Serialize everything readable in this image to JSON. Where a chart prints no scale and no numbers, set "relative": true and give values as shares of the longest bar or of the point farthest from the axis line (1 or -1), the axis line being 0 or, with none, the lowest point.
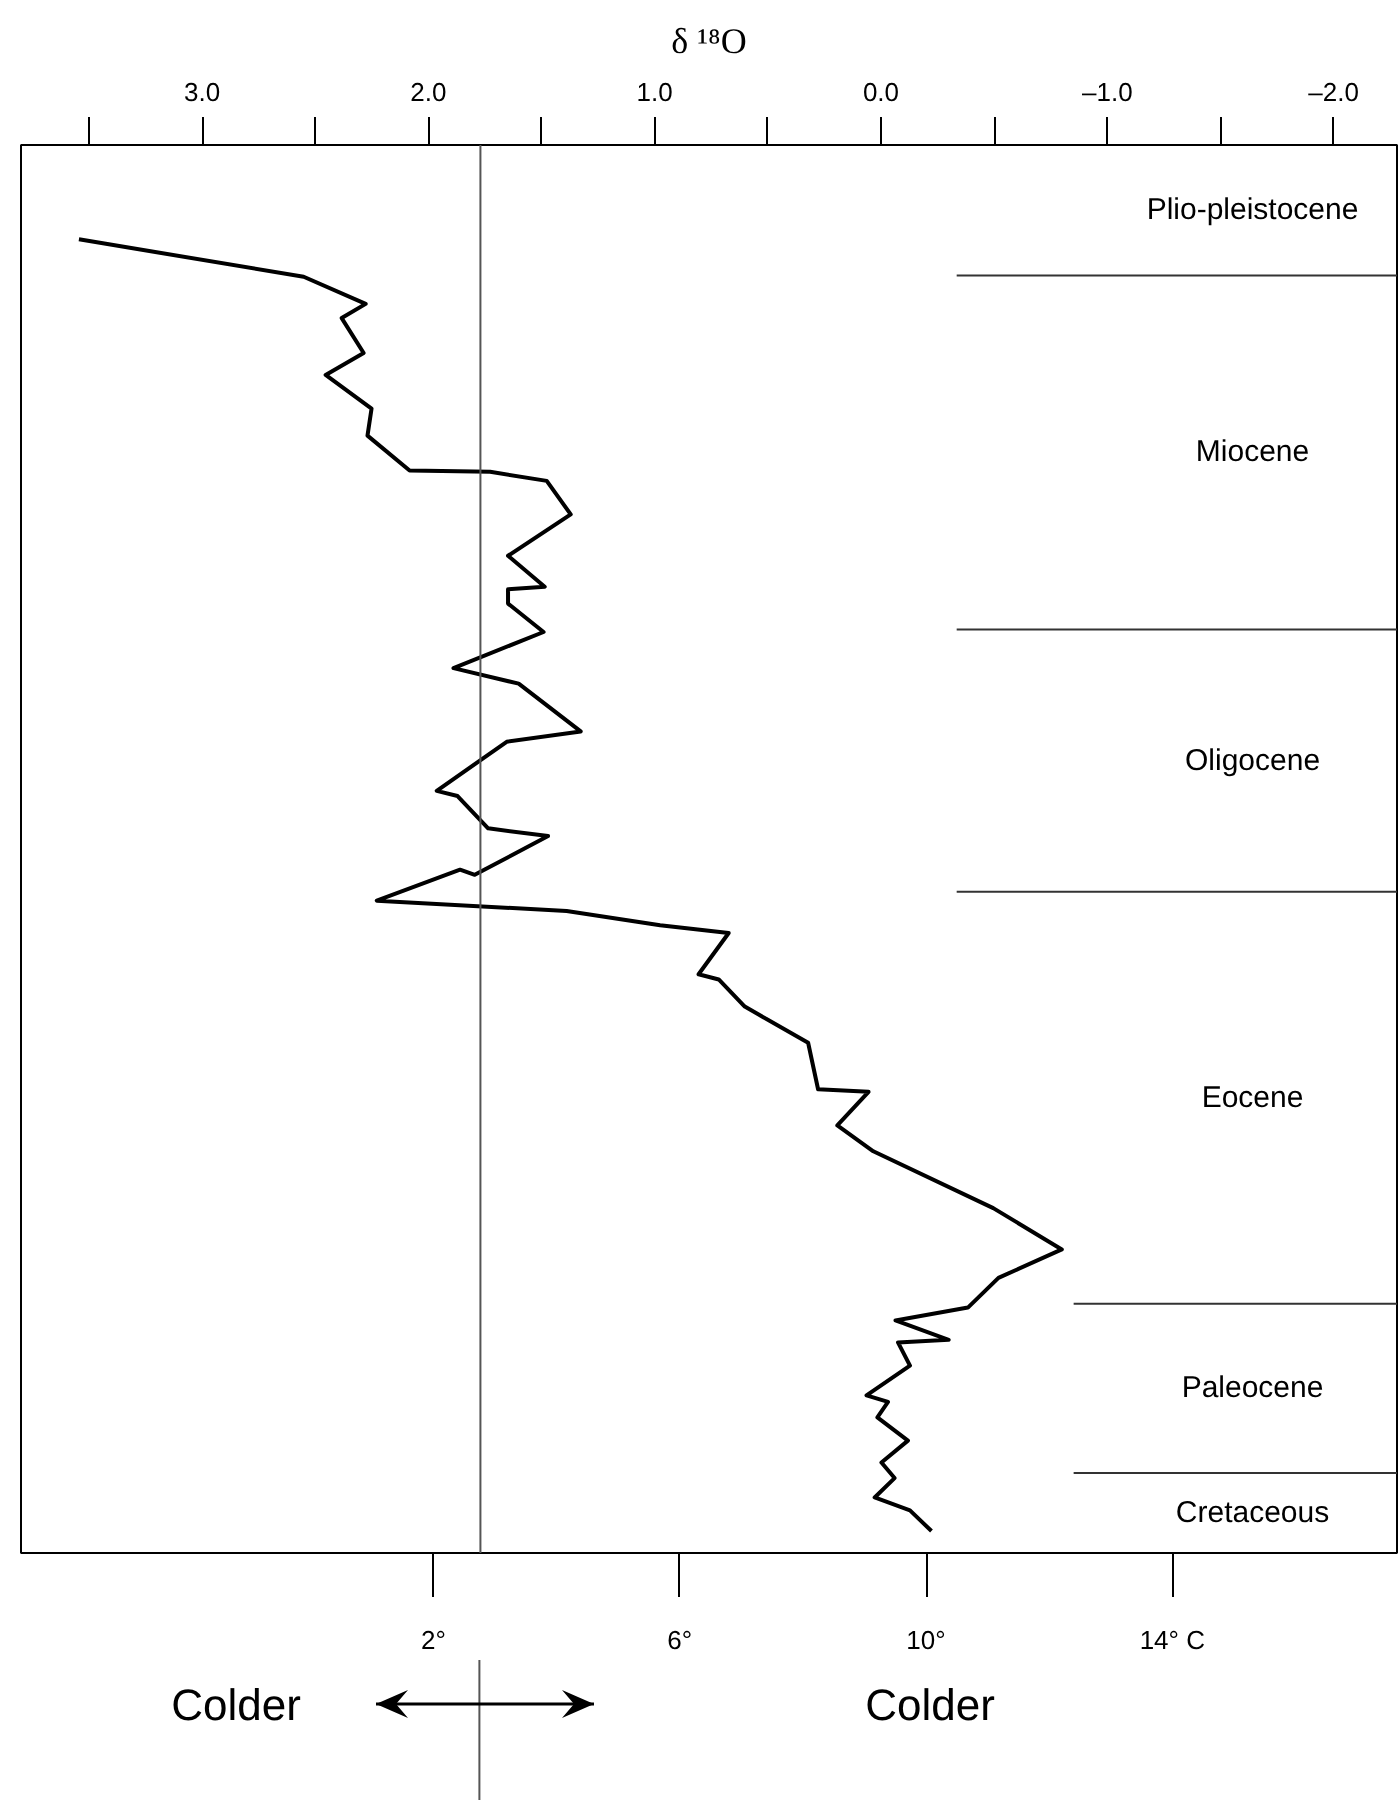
{
  "chart_data": {
    "type": "line",
    "relative": true,
    "xlabel": "δ ¹⁸O",
    "xlim": [
      3.8,
      -2.28
    ],
    "xticks": [
      {
        "value": 3.5,
        "label": null
      },
      {
        "value": 3,
        "label": "3.0"
      },
      {
        "value": 2.5,
        "label": null
      },
      {
        "value": 2,
        "label": "2.0"
      },
      {
        "value": 1.5,
        "label": null
      },
      {
        "value": 1,
        "label": "1.0"
      },
      {
        "value": 0.5,
        "label": null
      },
      {
        "value": 0,
        "label": "0.0"
      },
      {
        "value": -0.5,
        "label": null
      },
      {
        "value": -1,
        "label": "–1.0"
      },
      {
        "value": -1.5,
        "label": null
      },
      {
        "value": -2,
        "label": "–2.0"
      }
    ],
    "x2lim": [
      -4.7,
      17.65
    ],
    "x2ticks": [
      {
        "value": 2,
        "label": "2°"
      },
      {
        "value": 6,
        "label": "6°"
      },
      {
        "value": 10,
        "label": "10°"
      },
      {
        "value": 14,
        "label": "14° C"
      }
    ],
    "grid": false,
    "ylim": [
      -0.017,
      1.073
    ],
    "ref_lines": [
      {
        "axis": "x",
        "value": 1.77,
        "color": "#555555"
      },
      {
        "axis": "y",
        "value": 0.972,
        "color": "#333333"
      },
      {
        "axis": "y",
        "value": 0.698,
        "color": "#333333"
      },
      {
        "axis": "y",
        "value": 0.495,
        "color": "#333333"
      },
      {
        "axis": "y",
        "value": 0.176,
        "color": "#333333"
      },
      {
        "axis": "y",
        "value": 0.045,
        "color": "#333333"
      }
    ],
    "annotations": [
      "Plio-pleistocene",
      "Miocene",
      "Oligocene",
      "Eocene",
      "Paleocene",
      "Cretaceous",
      "Colder",
      "Colder"
    ],
    "series": [
      {
        "color": "#000000",
        "x": [
          3.544,
          2.551,
          2.277,
          2.383,
          2.286,
          2.454,
          2.251,
          2.269,
          2.083,
          1.727,
          1.477,
          1.371,
          1.648,
          1.486,
          1.648,
          1.648,
          1.491,
          1.889,
          1.601,
          1.327,
          1.654,
          1.963,
          1.871,
          1.736,
          1.471,
          1.795,
          1.86,
          2.228,
          1.389,
          0.976,
          0.673,
          0.806,
          0.717,
          0.602,
          0.322,
          0.278,
          0.055,
          0.193,
          0.034,
          -0.496,
          -0.799,
          -0.519,
          -0.384,
          -0.064,
          -0.299,
          -0.075,
          -0.128,
          0.064,
          -0.031,
          0.016,
          -0.119,
          -0.002,
          -0.06,
          0.028,
          -0.128,
          -0.223
        ],
        "values": [
          1.0,
          0.971,
          0.95,
          0.939,
          0.912,
          0.895,
          0.869,
          0.848,
          0.821,
          0.82,
          0.813,
          0.787,
          0.755,
          0.731,
          0.729,
          0.718,
          0.696,
          0.668,
          0.656,
          0.619,
          0.611,
          0.573,
          0.569,
          0.544,
          0.538,
          0.508,
          0.512,
          0.488,
          0.48,
          0.469,
          0.463,
          0.431,
          0.427,
          0.406,
          0.378,
          0.342,
          0.34,
          0.314,
          0.294,
          0.25,
          0.218,
          0.196,
          0.173,
          0.163,
          0.148,
          0.146,
          0.128,
          0.105,
          0.1,
          0.088,
          0.07,
          0.053,
          0.041,
          0.026,
          0.016,
          0.0
        ]
      }
    ]
  }
}
